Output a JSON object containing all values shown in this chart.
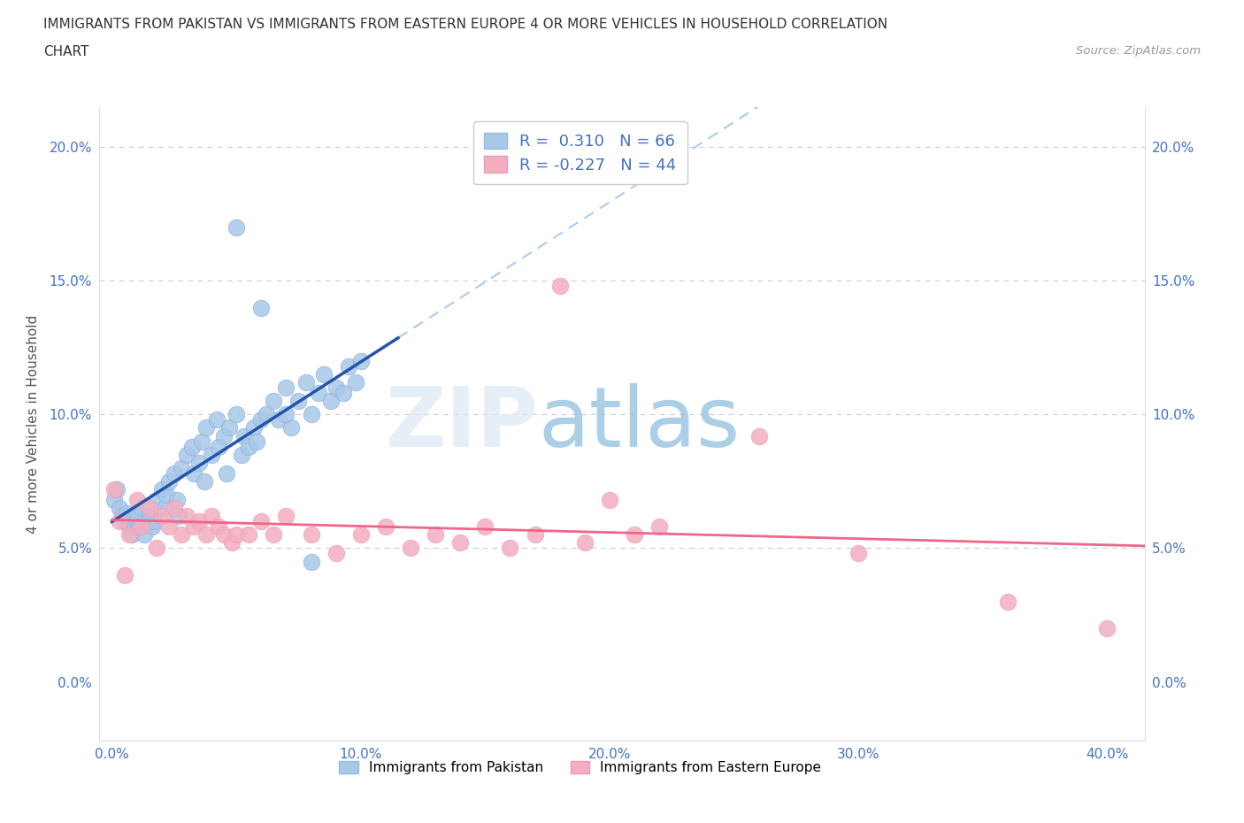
{
  "title_line1": "IMMIGRANTS FROM PAKISTAN VS IMMIGRANTS FROM EASTERN EUROPE 4 OR MORE VEHICLES IN HOUSEHOLD CORRELATION",
  "title_line2": "CHART",
  "source_text": "Source: ZipAtlas.com",
  "ylabel": "4 or more Vehicles in Household",
  "xlim": [
    -0.005,
    0.415
  ],
  "ylim": [
    -0.022,
    0.215
  ],
  "ytick_vals": [
    0.0,
    0.05,
    0.1,
    0.15,
    0.2
  ],
  "ytick_labels": [
    "0.0%",
    "5.0%",
    "10.0%",
    "15.0%",
    "20.0%"
  ],
  "xtick_vals": [
    0.0,
    0.1,
    0.2,
    0.3,
    0.4
  ],
  "xtick_labels": [
    "0.0%",
    "10.0%",
    "20.0%",
    "30.0%",
    "40.0%"
  ],
  "blue_R": 0.31,
  "blue_N": 66,
  "pink_R": -0.227,
  "pink_N": 44,
  "blue_scatter_color": "#a8c8e8",
  "pink_scatter_color": "#f4aec0",
  "blue_line_color": "#2255aa",
  "pink_line_color": "#ee6688",
  "dashed_line_color": "#aaccee",
  "tick_color": "#4472c4",
  "legend_label_blue": "Immigrants from Pakistan",
  "legend_label_pink": "Immigrants from Eastern Europe",
  "watermark_zip": "ZIP",
  "watermark_atlas": "atlas",
  "bg_color": "#ffffff",
  "blue_scatter_x": [
    0.001,
    0.002,
    0.003,
    0.004,
    0.005,
    0.006,
    0.007,
    0.008,
    0.009,
    0.01,
    0.01,
    0.011,
    0.012,
    0.013,
    0.015,
    0.016,
    0.017,
    0.018,
    0.02,
    0.021,
    0.022,
    0.023,
    0.025,
    0.026,
    0.027,
    0.028,
    0.03,
    0.032,
    0.033,
    0.035,
    0.036,
    0.037,
    0.038,
    0.04,
    0.042,
    0.043,
    0.045,
    0.046,
    0.047,
    0.05,
    0.052,
    0.053,
    0.055,
    0.057,
    0.058,
    0.06,
    0.062,
    0.065,
    0.067,
    0.07,
    0.072,
    0.075,
    0.078,
    0.08,
    0.083,
    0.085,
    0.088,
    0.09,
    0.093,
    0.095,
    0.098,
    0.1,
    0.05,
    0.06,
    0.07,
    0.08
  ],
  "blue_scatter_y": [
    0.068,
    0.072,
    0.065,
    0.062,
    0.06,
    0.063,
    0.058,
    0.055,
    0.058,
    0.06,
    0.062,
    0.058,
    0.065,
    0.055,
    0.062,
    0.058,
    0.06,
    0.068,
    0.072,
    0.065,
    0.07,
    0.075,
    0.078,
    0.068,
    0.062,
    0.08,
    0.085,
    0.088,
    0.078,
    0.082,
    0.09,
    0.075,
    0.095,
    0.085,
    0.098,
    0.088,
    0.092,
    0.078,
    0.095,
    0.1,
    0.085,
    0.092,
    0.088,
    0.095,
    0.09,
    0.098,
    0.1,
    0.105,
    0.098,
    0.11,
    0.095,
    0.105,
    0.112,
    0.1,
    0.108,
    0.115,
    0.105,
    0.11,
    0.108,
    0.118,
    0.112,
    0.12,
    0.17,
    0.14,
    0.1,
    0.045
  ],
  "pink_scatter_x": [
    0.001,
    0.003,
    0.005,
    0.007,
    0.01,
    0.012,
    0.015,
    0.018,
    0.02,
    0.023,
    0.025,
    0.028,
    0.03,
    0.033,
    0.035,
    0.038,
    0.04,
    0.043,
    0.045,
    0.048,
    0.05,
    0.055,
    0.06,
    0.065,
    0.07,
    0.08,
    0.09,
    0.1,
    0.11,
    0.12,
    0.13,
    0.14,
    0.15,
    0.16,
    0.17,
    0.18,
    0.19,
    0.2,
    0.21,
    0.22,
    0.26,
    0.3,
    0.36,
    0.4
  ],
  "pink_scatter_y": [
    0.072,
    0.06,
    0.04,
    0.055,
    0.068,
    0.058,
    0.065,
    0.05,
    0.062,
    0.058,
    0.065,
    0.055,
    0.062,
    0.058,
    0.06,
    0.055,
    0.062,
    0.058,
    0.055,
    0.052,
    0.055,
    0.055,
    0.06,
    0.055,
    0.062,
    0.055,
    0.048,
    0.055,
    0.058,
    0.05,
    0.055,
    0.052,
    0.058,
    0.05,
    0.055,
    0.148,
    0.052,
    0.068,
    0.055,
    0.058,
    0.092,
    0.048,
    0.03,
    0.02
  ]
}
